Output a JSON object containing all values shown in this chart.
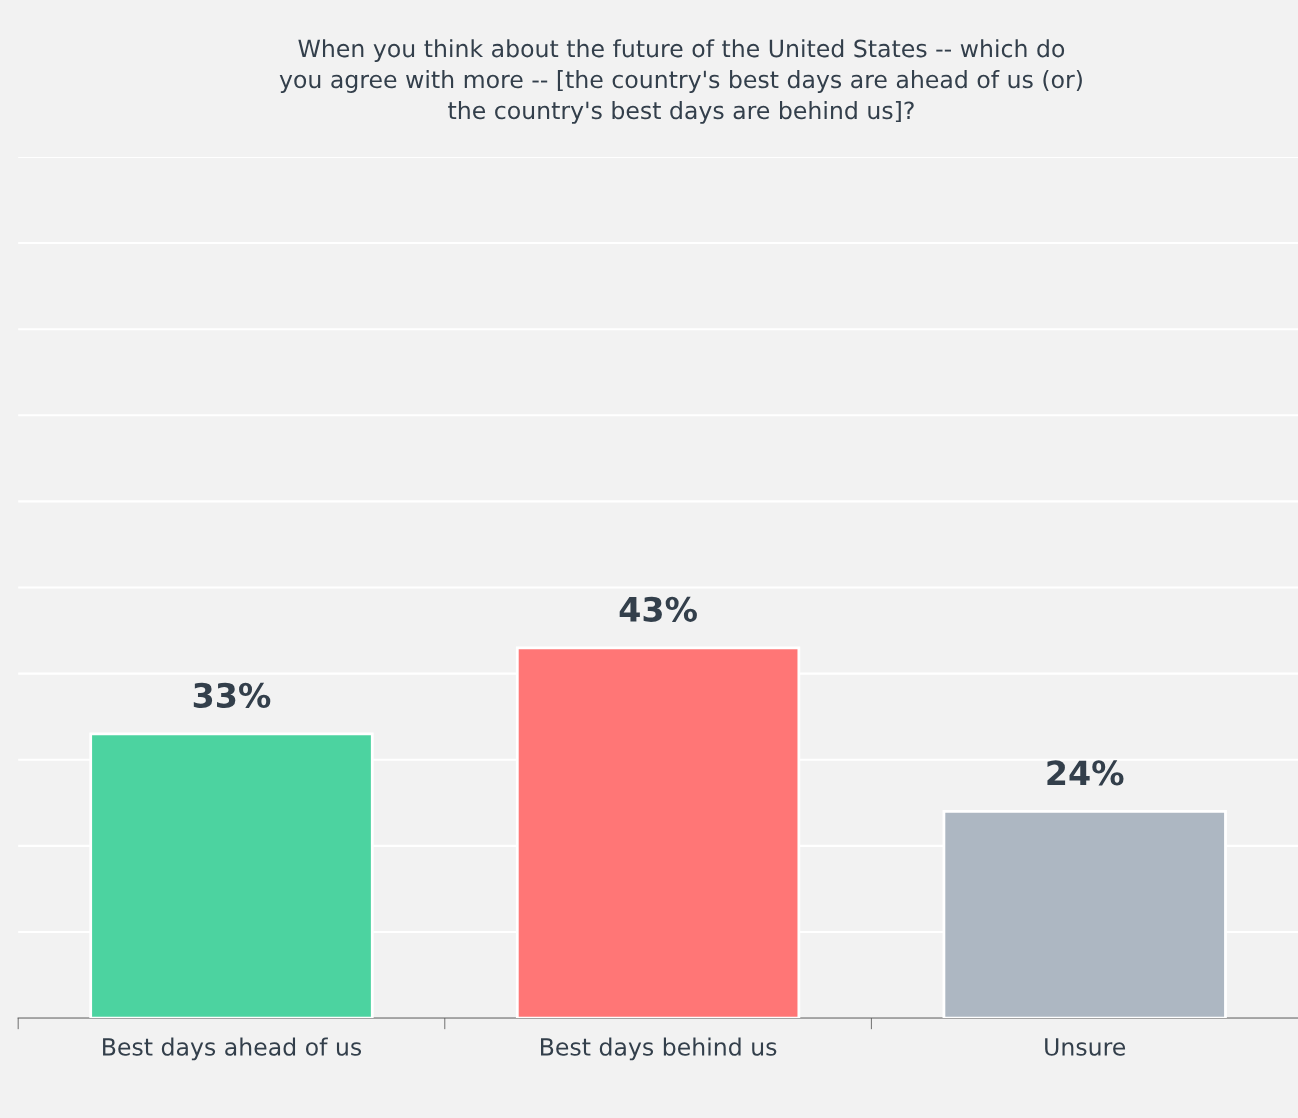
{
  "chart_data": {
    "type": "bar",
    "title": "When you think about the future of the United States -- which do\nyou agree with more -- [the country's best days are ahead of us (or)\nthe country's best days are behind us]?",
    "categories": [
      "Best days ahead of us",
      "Best days behind us",
      "Unsure"
    ],
    "values": [
      33,
      43,
      24
    ],
    "colors": [
      "#4cd3a0",
      "#ff7676",
      "#adb7c2"
    ],
    "value_labels": [
      "33%",
      "43%",
      "24%"
    ],
    "ylim": [
      0,
      100
    ],
    "yticks": [
      {
        "value": 0,
        "label": null
      },
      {
        "value": 10,
        "label": null
      },
      {
        "value": 20,
        "label": null
      },
      {
        "value": 30,
        "label": null
      },
      {
        "value": 40,
        "label": null
      },
      {
        "value": 50,
        "label": null
      },
      {
        "value": 60,
        "label": null
      },
      {
        "value": 70,
        "label": null
      },
      {
        "value": 80,
        "label": null
      },
      {
        "value": 90,
        "label": null
      },
      {
        "value": 100,
        "label": null
      }
    ],
    "grid": "y",
    "tick_labels": "x"
  }
}
